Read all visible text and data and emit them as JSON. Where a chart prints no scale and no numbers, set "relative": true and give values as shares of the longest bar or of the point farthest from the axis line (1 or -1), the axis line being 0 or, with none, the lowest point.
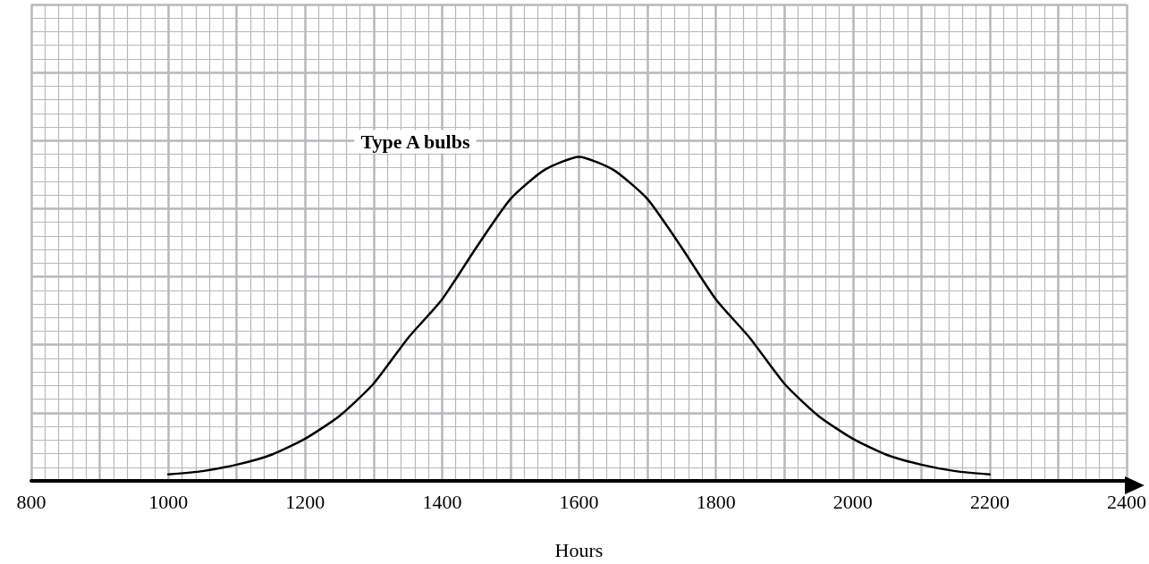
{
  "chart_data": {
    "type": "line",
    "xlabel": "Hours",
    "relative": true,
    "xlim": [
      800,
      2400
    ],
    "xticks": [
      800,
      1000,
      1200,
      1400,
      1600,
      1800,
      2000,
      2200,
      2400
    ],
    "grid": true,
    "marker": "none",
    "line_style": "solid",
    "x": [
      1000,
      1050,
      1100,
      1150,
      1200,
      1250,
      1300,
      1350,
      1400,
      1450,
      1500,
      1550,
      1600,
      1650,
      1700,
      1750,
      1800,
      1850,
      1900,
      1950,
      2000,
      2050,
      2100,
      2150,
      2200
    ],
    "series": [
      {
        "name": "Type A bulbs",
        "color": "#000000",
        "values": [
          0.02,
          0.03,
          0.05,
          0.08,
          0.13,
          0.2,
          0.3,
          0.44,
          0.56,
          0.72,
          0.87,
          0.96,
          1,
          0.96,
          0.87,
          0.72,
          0.56,
          0.44,
          0.3,
          0.2,
          0.13,
          0.08,
          0.05,
          0.03,
          0.02
        ]
      }
    ]
  }
}
